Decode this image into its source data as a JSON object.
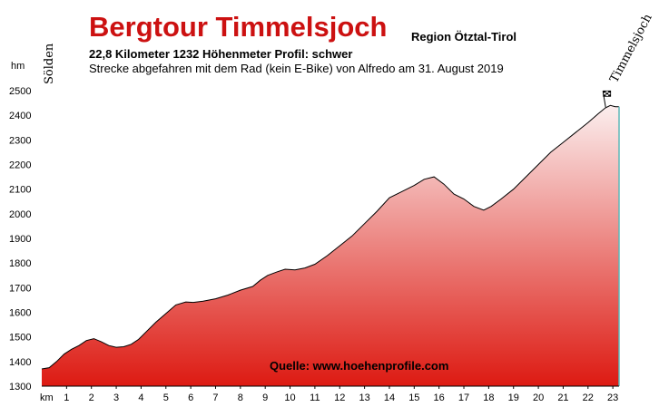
{
  "header": {
    "title": "Bergtour Timmelsjoch",
    "region": "Region Ötztal-Tirol",
    "subtitle": "22,8 Kilometer  1232 Höhenmeter  Profil: schwer",
    "subtitle2": "Strecke abgefahren mit dem Rad (kein E-Bike) von Alfredo am 31. August 2019"
  },
  "chart_data": {
    "type": "area",
    "xlabel": "km",
    "ylabel": "hm",
    "xlim": [
      0,
      23.3
    ],
    "ylim": [
      1300,
      2500
    ],
    "x_ticks": [
      1,
      2,
      3,
      4,
      5,
      6,
      7,
      8,
      9,
      10,
      11,
      12,
      13,
      14,
      15,
      16,
      17,
      18,
      19,
      20,
      21,
      22,
      23
    ],
    "y_ticks": [
      1300,
      1400,
      1500,
      1600,
      1700,
      1800,
      1900,
      2000,
      2100,
      2200,
      2300,
      2400,
      2500
    ],
    "start_label": "Sölden",
    "end_label": "Timmelsjoch",
    "source": "Quelle: www.hoehenprofile.com",
    "colors": {
      "fill_top": "#fbeeee",
      "fill_bottom": "#dd1a12",
      "line": "#000000",
      "end_edge": "#5fb8b8"
    },
    "x": [
      0,
      0.3,
      0.6,
      0.9,
      1.2,
      1.5,
      1.8,
      2.1,
      2.4,
      2.7,
      3.0,
      3.3,
      3.6,
      3.9,
      4.2,
      4.6,
      5.0,
      5.4,
      5.8,
      6.1,
      6.5,
      7.0,
      7.5,
      8.0,
      8.5,
      8.8,
      9.1,
      9.5,
      9.8,
      10.2,
      10.6,
      11.0,
      11.5,
      12.0,
      12.5,
      13.0,
      13.5,
      14.0,
      14.5,
      15.0,
      15.4,
      15.8,
      16.2,
      16.6,
      17.0,
      17.4,
      17.8,
      18.1,
      18.5,
      19.0,
      19.5,
      20.0,
      20.5,
      21.0,
      21.5,
      22.0,
      22.4,
      22.7,
      22.9,
      23.1
    ],
    "y": [
      1370,
      1375,
      1400,
      1430,
      1450,
      1465,
      1485,
      1493,
      1480,
      1465,
      1458,
      1460,
      1470,
      1490,
      1520,
      1560,
      1595,
      1630,
      1642,
      1640,
      1645,
      1655,
      1670,
      1690,
      1705,
      1730,
      1750,
      1765,
      1775,
      1772,
      1780,
      1795,
      1830,
      1870,
      1910,
      1960,
      2010,
      2065,
      2090,
      2115,
      2140,
      2150,
      2120,
      2080,
      2060,
      2030,
      2015,
      2030,
      2060,
      2100,
      2150,
      2200,
      2250,
      2290,
      2330,
      2370,
      2405,
      2430,
      2440,
      2435
    ]
  }
}
